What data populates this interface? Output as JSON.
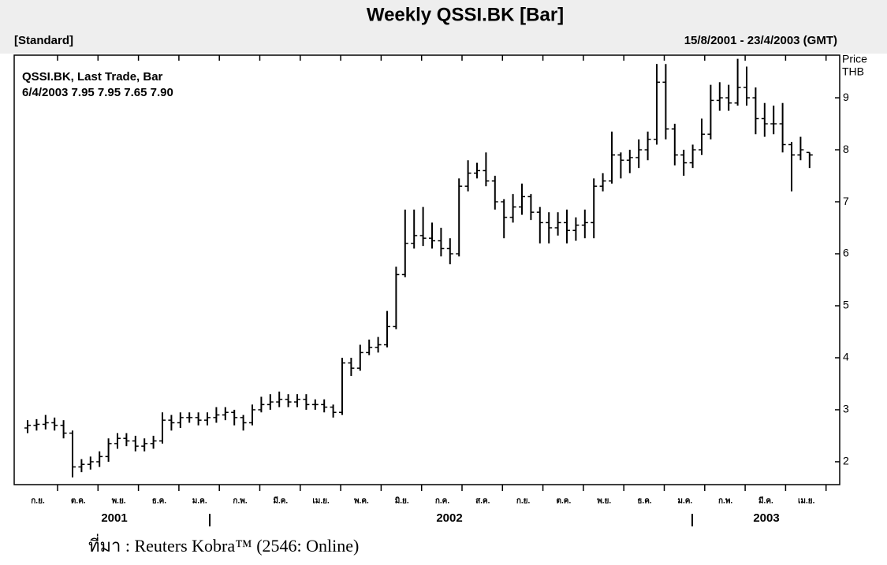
{
  "chart_data": {
    "type": "ohlc",
    "title": "Weekly QSSI.BK [Bar]",
    "subtitle_left": "[Standard]",
    "subtitle_right": "15/8/2001 - 23/4/2003 (GMT)",
    "legend_title": "QSSI.BK, Last Trade, Bar",
    "legend_last": "6/4/2003 7.95 7.95 7.65 7.90",
    "y_label": [
      "Price",
      "THB"
    ],
    "color": "#000000",
    "ylim": [
      1.56,
      9.82
    ],
    "yticks": [
      2,
      3,
      4,
      5,
      6,
      7,
      8,
      9
    ],
    "month_labels": [
      "ก.ย.",
      "ต.ค.",
      "พ.ย.",
      "ธ.ค.",
      "ม.ค.",
      "ก.พ.",
      "มี.ค.",
      "เม.ย.",
      "พ.ค.",
      "มิ.ย.",
      "ก.ค.",
      "ส.ค.",
      "ก.ย.",
      "ต.ค.",
      "พ.ย.",
      "ธ.ค.",
      "ม.ค.",
      "ก.พ.",
      "มี.ค.",
      "เม.ย."
    ],
    "year_labels": [
      "2001",
      "2002",
      "2003"
    ],
    "open": [
      2.65,
      2.7,
      2.72,
      2.75,
      2.7,
      2.55,
      1.9,
      1.95,
      2.0,
      2.1,
      2.35,
      2.45,
      2.4,
      2.3,
      2.35,
      2.4,
      2.8,
      2.75,
      2.85,
      2.85,
      2.8,
      2.85,
      2.9,
      2.95,
      2.85,
      2.75,
      3.0,
      3.1,
      3.15,
      3.2,
      3.15,
      3.2,
      3.1,
      3.1,
      3.05,
      2.95,
      3.9,
      3.8,
      4.1,
      4.2,
      4.25,
      4.6,
      5.6,
      6.2,
      6.35,
      6.3,
      6.25,
      6.1,
      6.0,
      7.3,
      7.55,
      7.6,
      7.4,
      7.0,
      6.7,
      6.9,
      7.1,
      6.8,
      6.6,
      6.5,
      6.6,
      6.45,
      6.55,
      6.6,
      7.3,
      7.4,
      7.9,
      7.8,
      7.85,
      8.0,
      8.2,
      9.3,
      8.4,
      7.9,
      7.75,
      8.0,
      8.3,
      8.95,
      9.0,
      8.9,
      9.2,
      9.0,
      8.6,
      8.5,
      8.5,
      8.1,
      7.9,
      7.95
    ],
    "high": [
      2.8,
      2.82,
      2.9,
      2.85,
      2.8,
      2.6,
      2.05,
      2.1,
      2.2,
      2.45,
      2.55,
      2.55,
      2.5,
      2.45,
      2.5,
      2.95,
      2.9,
      2.95,
      2.95,
      2.95,
      2.95,
      3.05,
      3.05,
      3.0,
      2.9,
      3.1,
      3.25,
      3.3,
      3.35,
      3.3,
      3.3,
      3.3,
      3.2,
      3.2,
      3.1,
      4.0,
      4.0,
      4.25,
      4.35,
      4.4,
      4.9,
      5.75,
      6.85,
      6.85,
      6.9,
      6.6,
      6.5,
      6.3,
      7.45,
      7.8,
      7.75,
      7.95,
      7.5,
      7.05,
      7.15,
      7.35,
      7.15,
      6.9,
      6.8,
      6.8,
      6.85,
      6.7,
      6.85,
      7.45,
      7.55,
      8.35,
      7.95,
      8.0,
      8.2,
      8.35,
      9.65,
      9.65,
      8.5,
      8.0,
      8.1,
      8.6,
      9.25,
      9.3,
      9.25,
      9.75,
      9.6,
      9.2,
      8.9,
      8.85,
      8.9,
      8.15,
      8.25,
      7.95
    ],
    "low": [
      2.55,
      2.6,
      2.62,
      2.6,
      2.45,
      1.7,
      1.8,
      1.85,
      1.9,
      2.0,
      2.25,
      2.3,
      2.2,
      2.2,
      2.25,
      2.35,
      2.6,
      2.65,
      2.75,
      2.7,
      2.7,
      2.75,
      2.8,
      2.7,
      2.6,
      2.7,
      2.95,
      3.0,
      3.05,
      3.05,
      3.05,
      3.0,
      3.0,
      2.95,
      2.85,
      2.9,
      3.65,
      3.75,
      4.05,
      4.1,
      4.2,
      4.55,
      5.55,
      6.1,
      6.15,
      6.1,
      5.95,
      5.8,
      5.95,
      7.2,
      7.45,
      7.3,
      6.85,
      6.3,
      6.6,
      6.75,
      6.65,
      6.2,
      6.2,
      6.35,
      6.2,
      6.25,
      6.3,
      6.3,
      7.2,
      7.35,
      7.45,
      7.55,
      7.65,
      7.8,
      8.1,
      8.2,
      7.7,
      7.5,
      7.65,
      7.9,
      8.2,
      8.75,
      8.75,
      8.85,
      8.85,
      8.3,
      8.25,
      8.3,
      7.95,
      7.2,
      7.8,
      7.65
    ],
    "close": [
      2.7,
      2.72,
      2.75,
      2.7,
      2.55,
      1.9,
      1.95,
      2.0,
      2.1,
      2.35,
      2.45,
      2.4,
      2.3,
      2.35,
      2.4,
      2.8,
      2.75,
      2.85,
      2.85,
      2.8,
      2.85,
      2.9,
      2.95,
      2.85,
      2.75,
      3.0,
      3.1,
      3.15,
      3.2,
      3.15,
      3.2,
      3.1,
      3.1,
      3.05,
      2.95,
      3.9,
      3.8,
      4.1,
      4.2,
      4.25,
      4.6,
      5.6,
      6.2,
      6.35,
      6.3,
      6.25,
      6.1,
      6.0,
      7.3,
      7.55,
      7.6,
      7.4,
      7.0,
      6.7,
      6.9,
      7.1,
      6.8,
      6.6,
      6.5,
      6.6,
      6.45,
      6.55,
      6.6,
      7.3,
      7.4,
      7.9,
      7.8,
      7.85,
      8.0,
      8.2,
      9.3,
      8.4,
      7.9,
      7.75,
      8.0,
      8.3,
      8.95,
      9.0,
      8.9,
      9.2,
      9.0,
      8.6,
      8.5,
      8.5,
      8.1,
      7.9,
      8.0,
      7.9
    ]
  },
  "source": "ที่มา : Reuters Kobra™ (2546: Online)"
}
